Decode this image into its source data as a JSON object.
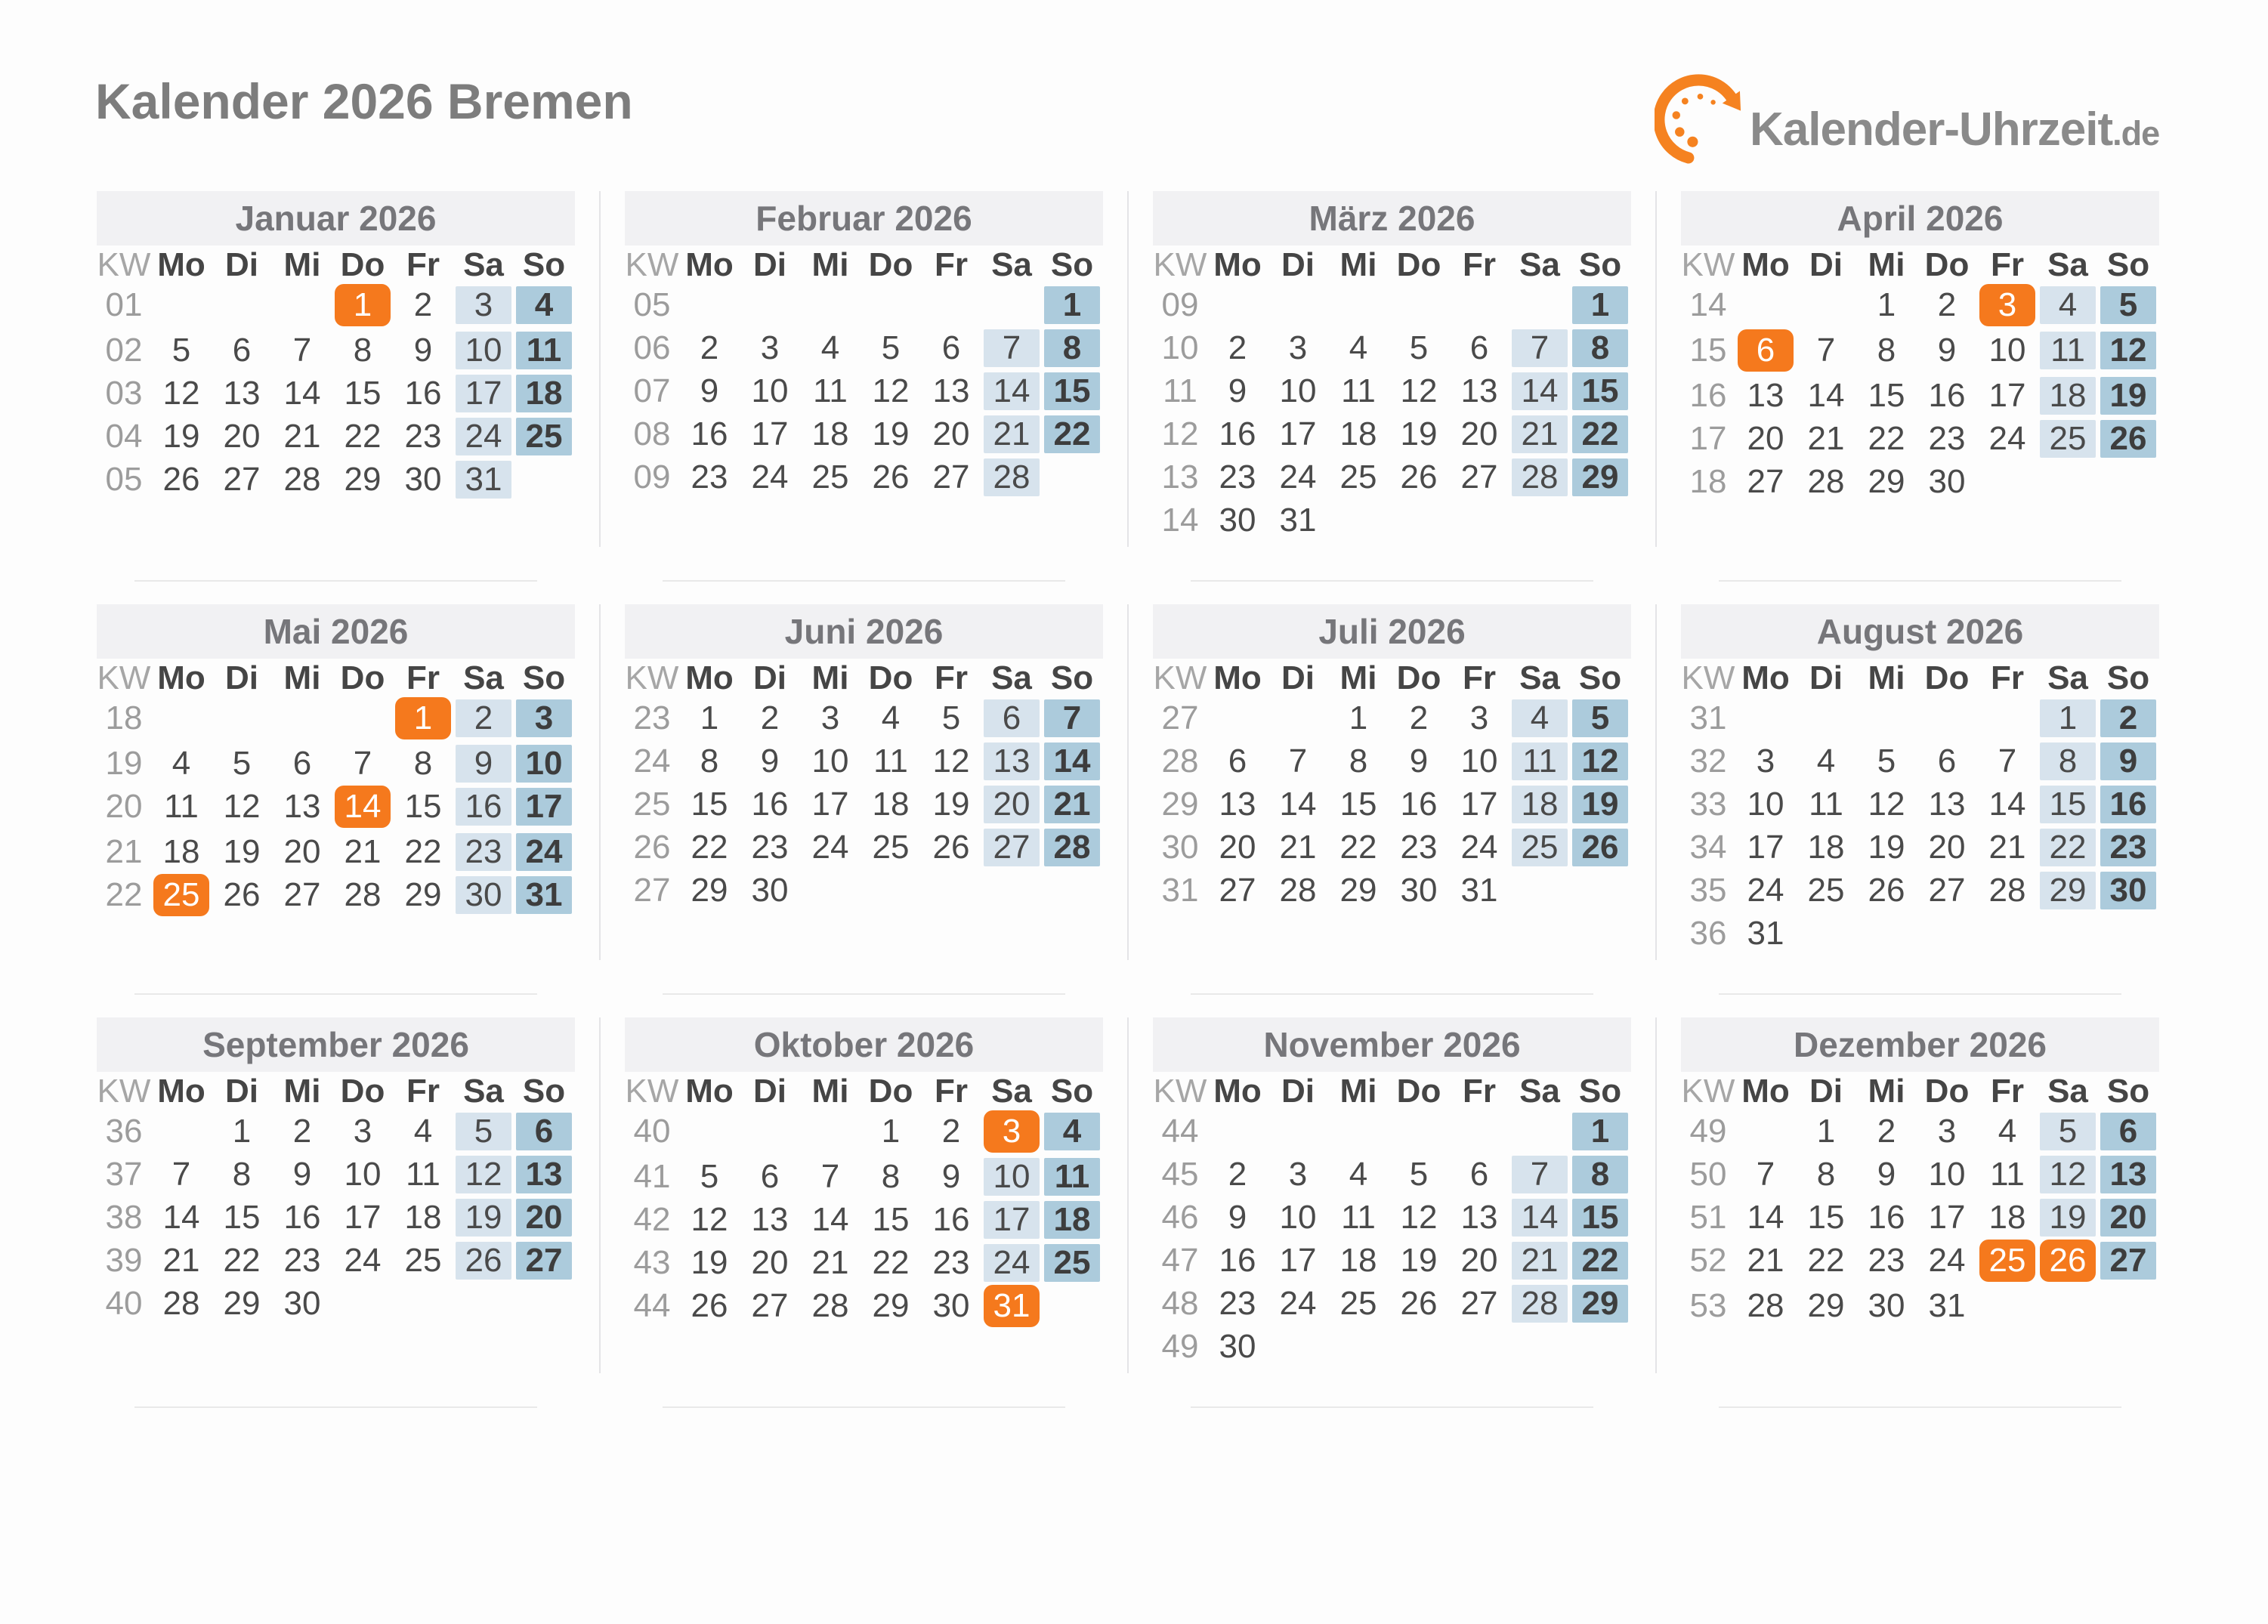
{
  "page": {
    "title": "Kalender 2026 Bremen"
  },
  "logo": {
    "brand": "Kalender-Uhrzeit",
    "tld": ".de",
    "icon": "clock-arrow-icon"
  },
  "colors": {
    "holiday_orange": "#f5791d",
    "saturday_blue": "#d7e3ed",
    "sunday_blue": "#accbdc",
    "month_header_bg": "#f1f1f3",
    "title_gray": "#7d7d7d"
  },
  "calendar": {
    "kw_label": "KW",
    "weekdays": [
      "Mo",
      "Di",
      "Mi",
      "Do",
      "Fr",
      "Sa",
      "So"
    ],
    "months": [
      {
        "name": "Januar 2026",
        "weeks": [
          {
            "kw": "01",
            "days": [
              null,
              null,
              null,
              {
                "d": 1,
                "holiday": true
              },
              2,
              3,
              4
            ]
          },
          {
            "kw": "02",
            "days": [
              5,
              6,
              7,
              8,
              9,
              10,
              11
            ]
          },
          {
            "kw": "03",
            "days": [
              12,
              13,
              14,
              15,
              16,
              17,
              18
            ]
          },
          {
            "kw": "04",
            "days": [
              19,
              20,
              21,
              22,
              23,
              24,
              25
            ]
          },
          {
            "kw": "05",
            "days": [
              26,
              27,
              28,
              29,
              30,
              31,
              null
            ]
          }
        ]
      },
      {
        "name": "Februar 2026",
        "weeks": [
          {
            "kw": "05",
            "days": [
              null,
              null,
              null,
              null,
              null,
              null,
              1
            ]
          },
          {
            "kw": "06",
            "days": [
              2,
              3,
              4,
              5,
              6,
              7,
              8
            ]
          },
          {
            "kw": "07",
            "days": [
              9,
              10,
              11,
              12,
              13,
              14,
              15
            ]
          },
          {
            "kw": "08",
            "days": [
              16,
              17,
              18,
              19,
              20,
              21,
              22
            ]
          },
          {
            "kw": "09",
            "days": [
              23,
              24,
              25,
              26,
              27,
              28,
              null
            ]
          }
        ]
      },
      {
        "name": "März 2026",
        "weeks": [
          {
            "kw": "09",
            "days": [
              null,
              null,
              null,
              null,
              null,
              null,
              1
            ]
          },
          {
            "kw": "10",
            "days": [
              2,
              3,
              4,
              5,
              6,
              7,
              8
            ]
          },
          {
            "kw": "11",
            "days": [
              9,
              10,
              11,
              12,
              13,
              14,
              15
            ]
          },
          {
            "kw": "12",
            "days": [
              16,
              17,
              18,
              19,
              20,
              21,
              22
            ]
          },
          {
            "kw": "13",
            "days": [
              23,
              24,
              25,
              26,
              27,
              28,
              29
            ]
          },
          {
            "kw": "14",
            "days": [
              30,
              31,
              null,
              null,
              null,
              null,
              null
            ]
          }
        ]
      },
      {
        "name": "April 2026",
        "weeks": [
          {
            "kw": "14",
            "days": [
              null,
              null,
              1,
              2,
              {
                "d": 3,
                "holiday": true
              },
              4,
              5
            ]
          },
          {
            "kw": "15",
            "days": [
              {
                "d": 6,
                "holiday": true
              },
              7,
              8,
              9,
              10,
              11,
              12
            ]
          },
          {
            "kw": "16",
            "days": [
              13,
              14,
              15,
              16,
              17,
              18,
              19
            ]
          },
          {
            "kw": "17",
            "days": [
              20,
              21,
              22,
              23,
              24,
              25,
              26
            ]
          },
          {
            "kw": "18",
            "days": [
              27,
              28,
              29,
              30,
              null,
              null,
              null
            ]
          }
        ]
      },
      {
        "name": "Mai 2026",
        "weeks": [
          {
            "kw": "18",
            "days": [
              null,
              null,
              null,
              null,
              {
                "d": 1,
                "holiday": true
              },
              2,
              3
            ]
          },
          {
            "kw": "19",
            "days": [
              4,
              5,
              6,
              7,
              8,
              9,
              10
            ]
          },
          {
            "kw": "20",
            "days": [
              11,
              12,
              13,
              {
                "d": 14,
                "holiday": true
              },
              15,
              16,
              17
            ]
          },
          {
            "kw": "21",
            "days": [
              18,
              19,
              20,
              21,
              22,
              23,
              24
            ]
          },
          {
            "kw": "22",
            "days": [
              {
                "d": 25,
                "holiday": true
              },
              26,
              27,
              28,
              29,
              30,
              31
            ]
          }
        ]
      },
      {
        "name": "Juni 2026",
        "weeks": [
          {
            "kw": "23",
            "days": [
              1,
              2,
              3,
              4,
              5,
              6,
              7
            ]
          },
          {
            "kw": "24",
            "days": [
              8,
              9,
              10,
              11,
              12,
              13,
              14
            ]
          },
          {
            "kw": "25",
            "days": [
              15,
              16,
              17,
              18,
              19,
              20,
              21
            ]
          },
          {
            "kw": "26",
            "days": [
              22,
              23,
              24,
              25,
              26,
              27,
              28
            ]
          },
          {
            "kw": "27",
            "days": [
              29,
              30,
              null,
              null,
              null,
              null,
              null
            ]
          }
        ]
      },
      {
        "name": "Juli 2026",
        "weeks": [
          {
            "kw": "27",
            "days": [
              null,
              null,
              1,
              2,
              3,
              4,
              5
            ]
          },
          {
            "kw": "28",
            "days": [
              6,
              7,
              8,
              9,
              10,
              11,
              12
            ]
          },
          {
            "kw": "29",
            "days": [
              13,
              14,
              15,
              16,
              17,
              18,
              19
            ]
          },
          {
            "kw": "30",
            "days": [
              20,
              21,
              22,
              23,
              24,
              25,
              26
            ]
          },
          {
            "kw": "31",
            "days": [
              27,
              28,
              29,
              30,
              31,
              null,
              null
            ]
          }
        ]
      },
      {
        "name": "August 2026",
        "weeks": [
          {
            "kw": "31",
            "days": [
              null,
              null,
              null,
              null,
              null,
              1,
              2
            ]
          },
          {
            "kw": "32",
            "days": [
              3,
              4,
              5,
              6,
              7,
              8,
              9
            ]
          },
          {
            "kw": "33",
            "days": [
              10,
              11,
              12,
              13,
              14,
              15,
              16
            ]
          },
          {
            "kw": "34",
            "days": [
              17,
              18,
              19,
              20,
              21,
              22,
              23
            ]
          },
          {
            "kw": "35",
            "days": [
              24,
              25,
              26,
              27,
              28,
              29,
              30
            ]
          },
          {
            "kw": "36",
            "days": [
              31,
              null,
              null,
              null,
              null,
              null,
              null
            ]
          }
        ]
      },
      {
        "name": "September 2026",
        "weeks": [
          {
            "kw": "36",
            "days": [
              null,
              1,
              2,
              3,
              4,
              5,
              6
            ]
          },
          {
            "kw": "37",
            "days": [
              7,
              8,
              9,
              10,
              11,
              12,
              13
            ]
          },
          {
            "kw": "38",
            "days": [
              14,
              15,
              16,
              17,
              18,
              19,
              20
            ]
          },
          {
            "kw": "39",
            "days": [
              21,
              22,
              23,
              24,
              25,
              26,
              27
            ]
          },
          {
            "kw": "40",
            "days": [
              28,
              29,
              30,
              null,
              null,
              null,
              null
            ]
          }
        ]
      },
      {
        "name": "Oktober 2026",
        "weeks": [
          {
            "kw": "40",
            "days": [
              null,
              null,
              null,
              1,
              2,
              {
                "d": 3,
                "holiday": true
              },
              4
            ]
          },
          {
            "kw": "41",
            "days": [
              5,
              6,
              7,
              8,
              9,
              10,
              11
            ]
          },
          {
            "kw": "42",
            "days": [
              12,
              13,
              14,
              15,
              16,
              17,
              18
            ]
          },
          {
            "kw": "43",
            "days": [
              19,
              20,
              21,
              22,
              23,
              24,
              25
            ]
          },
          {
            "kw": "44",
            "days": [
              26,
              27,
              28,
              29,
              30,
              {
                "d": 31,
                "holiday": true
              },
              null
            ]
          }
        ]
      },
      {
        "name": "November 2026",
        "weeks": [
          {
            "kw": "44",
            "days": [
              null,
              null,
              null,
              null,
              null,
              null,
              1
            ]
          },
          {
            "kw": "45",
            "days": [
              2,
              3,
              4,
              5,
              6,
              7,
              8
            ]
          },
          {
            "kw": "46",
            "days": [
              9,
              10,
              11,
              12,
              13,
              14,
              15
            ]
          },
          {
            "kw": "47",
            "days": [
              16,
              17,
              18,
              19,
              20,
              21,
              22
            ]
          },
          {
            "kw": "48",
            "days": [
              23,
              24,
              25,
              26,
              27,
              28,
              29
            ]
          },
          {
            "kw": "49",
            "days": [
              30,
              null,
              null,
              null,
              null,
              null,
              null
            ]
          }
        ]
      },
      {
        "name": "Dezember 2026",
        "weeks": [
          {
            "kw": "49",
            "days": [
              null,
              1,
              2,
              3,
              4,
              5,
              6
            ]
          },
          {
            "kw": "50",
            "days": [
              7,
              8,
              9,
              10,
              11,
              12,
              13
            ]
          },
          {
            "kw": "51",
            "days": [
              14,
              15,
              16,
              17,
              18,
              19,
              20
            ]
          },
          {
            "kw": "52",
            "days": [
              21,
              22,
              23,
              24,
              {
                "d": 25,
                "holiday": true
              },
              {
                "d": 26,
                "holiday": true
              },
              27
            ]
          },
          {
            "kw": "53",
            "days": [
              28,
              29,
              30,
              31,
              null,
              null,
              null
            ]
          }
        ]
      }
    ]
  }
}
